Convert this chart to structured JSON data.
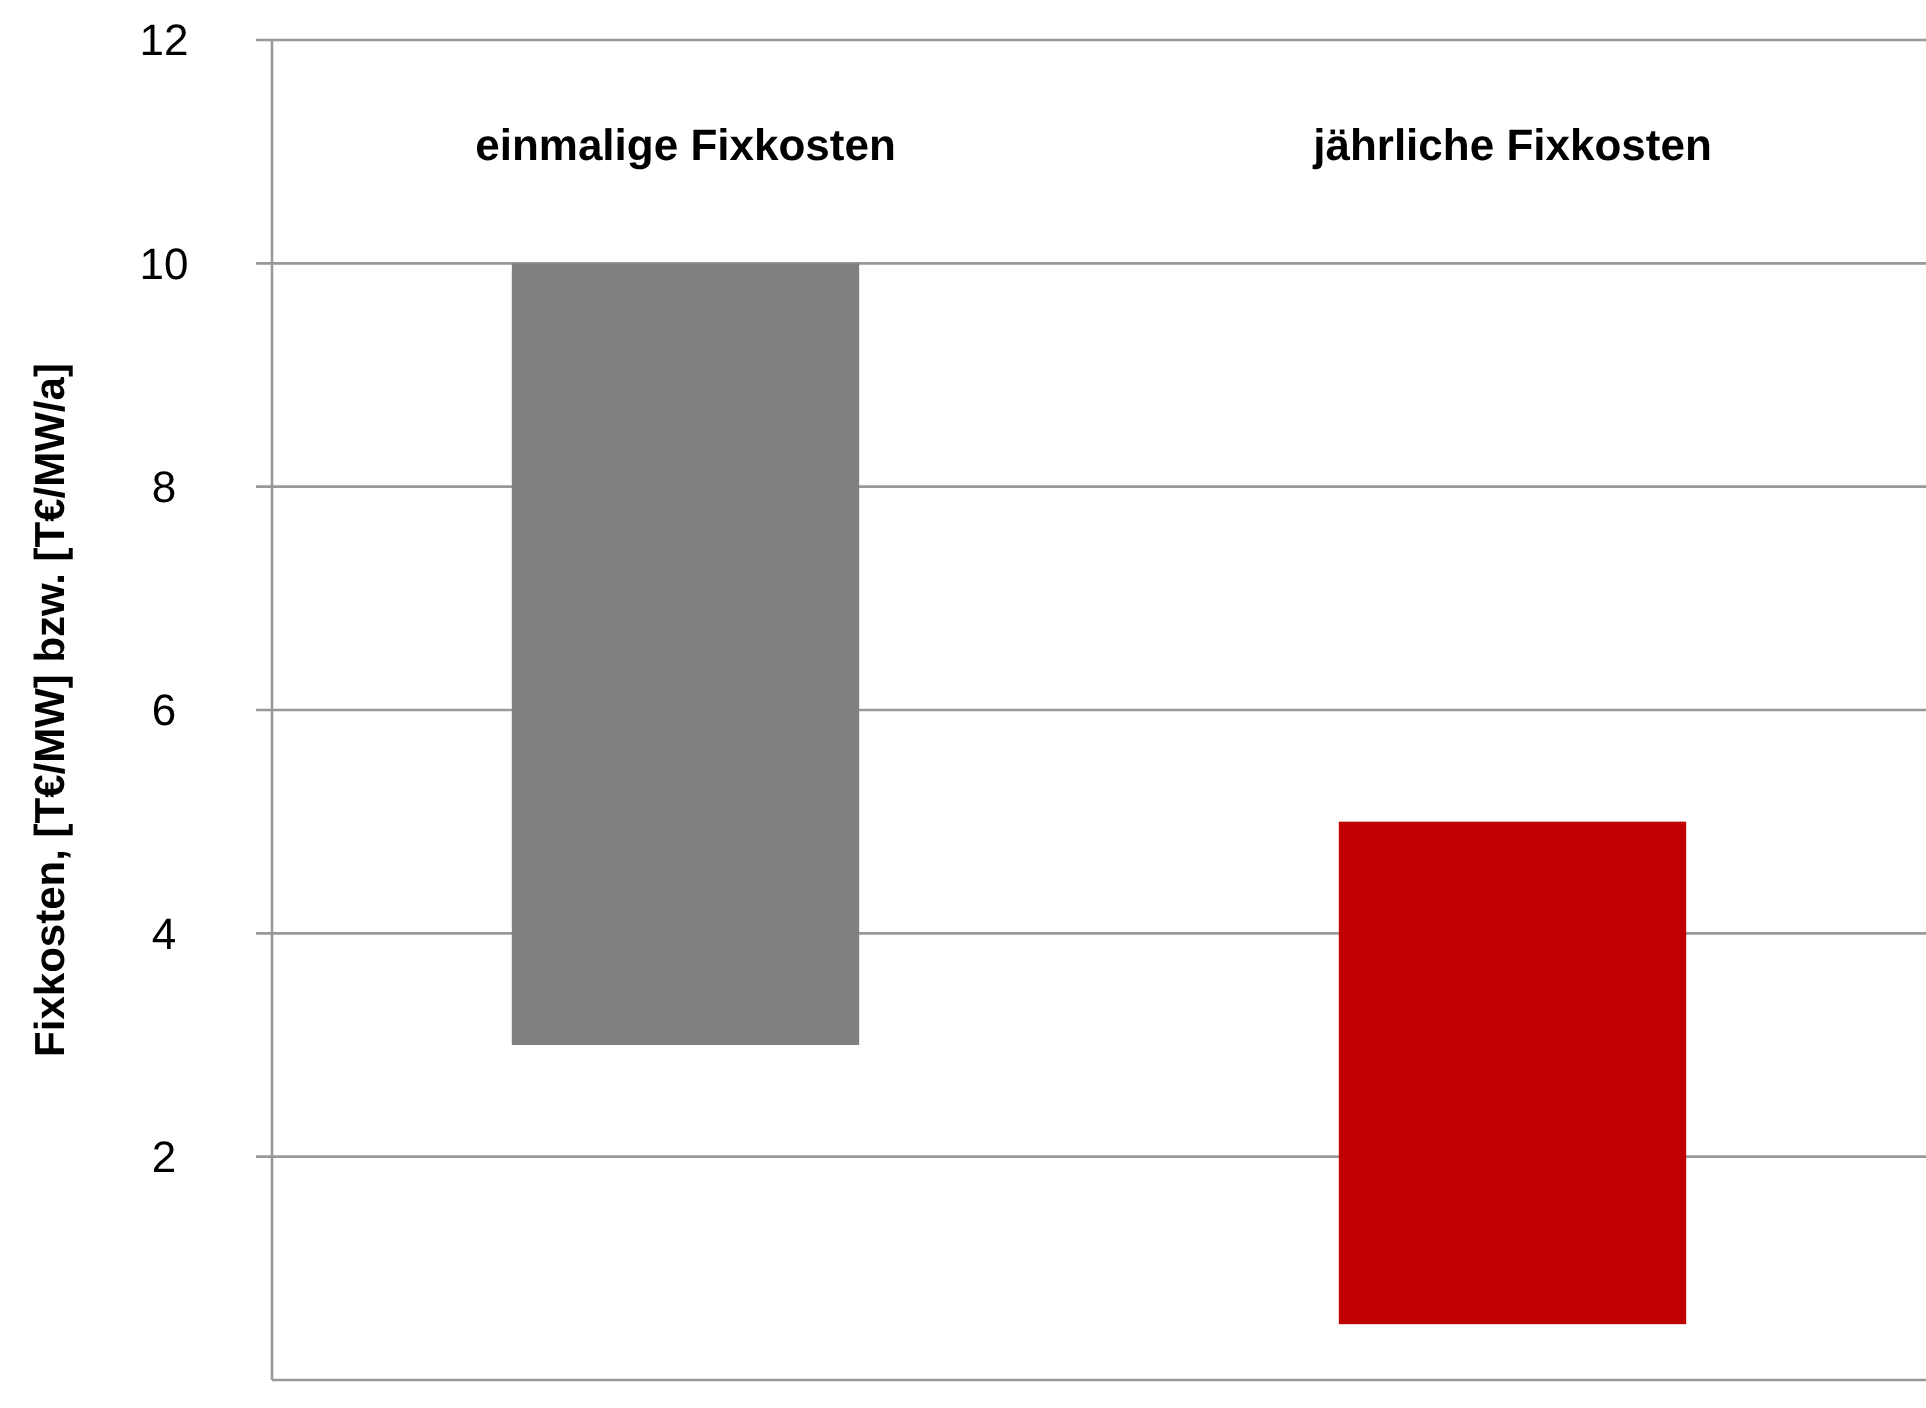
{
  "chart_data": {
    "type": "bar",
    "ylabel": "Fixkosten, [T€/MW] bzw. [T€/MW/a]",
    "categories": [
      "einmalige Fixkosten",
      "jährliche Fixkosten"
    ],
    "values": [
      7,
      4.5
    ],
    "base": [
      3,
      0.5
    ],
    "colors": [
      "#808080",
      "#c00000"
    ],
    "ylim": [
      0,
      12
    ],
    "yticks": [
      2,
      4,
      6,
      8,
      10,
      12
    ],
    "grid": "y"
  }
}
